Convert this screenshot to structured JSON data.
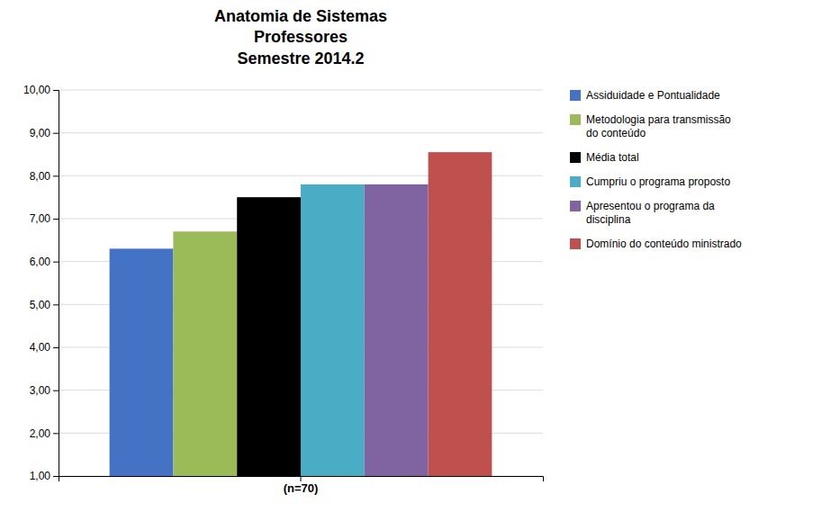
{
  "chart_data": {
    "type": "bar",
    "title": "Anatomia de Sistemas\nProfessores\nSemestre 2014.2",
    "categories": [
      "(n=70)"
    ],
    "series": [
      {
        "name": "Assiduidade e Pontualidade",
        "color": "#4472C4",
        "values": [
          6.3
        ]
      },
      {
        "name": "Metodologia para transmissão\ndo conteúdo",
        "color": "#9BBB59",
        "values": [
          6.7
        ]
      },
      {
        "name": "Média total",
        "color": "#000000",
        "values": [
          7.5
        ]
      },
      {
        "name": "Cumpriu o programa proposto",
        "color": "#4BACC6",
        "values": [
          7.8
        ]
      },
      {
        "name": "Apresentou o programa da\ndisciplina",
        "color": "#8064A2",
        "values": [
          7.8
        ]
      },
      {
        "name": "Domínio do conteúdo ministrado",
        "color": "#C0504D",
        "values": [
          8.55
        ]
      }
    ],
    "ylim": [
      1.0,
      10.0
    ],
    "yticks": [
      {
        "value": 1.0,
        "label": "1,00"
      },
      {
        "value": 2.0,
        "label": "2,00"
      },
      {
        "value": 3.0,
        "label": "3,00"
      },
      {
        "value": 4.0,
        "label": "4,00"
      },
      {
        "value": 5.0,
        "label": "5,00"
      },
      {
        "value": 6.0,
        "label": "6,00"
      },
      {
        "value": 7.0,
        "label": "7,00"
      },
      {
        "value": 8.0,
        "label": "8,00"
      },
      {
        "value": 9.0,
        "label": "9,00"
      },
      {
        "value": 10.0,
        "label": "10,00"
      }
    ],
    "grid": true,
    "legend": "right"
  }
}
